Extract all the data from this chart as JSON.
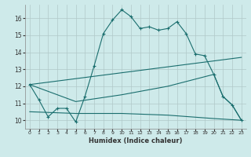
{
  "xlabel": "Humidex (Indice chaleur)",
  "bg_color": "#ceeaea",
  "grid_color": "#b0c8c8",
  "line_color": "#1a6e6e",
  "xlim": [
    -0.5,
    23.5
  ],
  "ylim": [
    9.5,
    16.8
  ],
  "xticks": [
    0,
    1,
    2,
    3,
    4,
    5,
    6,
    7,
    8,
    9,
    10,
    11,
    12,
    13,
    14,
    15,
    16,
    17,
    18,
    19,
    20,
    21,
    22,
    23
  ],
  "yticks": [
    10,
    11,
    12,
    13,
    14,
    15,
    16
  ],
  "series_main": [
    [
      0,
      12.1
    ],
    [
      1,
      11.2
    ],
    [
      2,
      10.2
    ],
    [
      3,
      10.7
    ],
    [
      4,
      10.7
    ],
    [
      5,
      9.9
    ],
    [
      6,
      11.4
    ],
    [
      7,
      13.2
    ],
    [
      8,
      15.1
    ],
    [
      9,
      15.9
    ],
    [
      10,
      16.5
    ],
    [
      11,
      16.1
    ],
    [
      12,
      15.4
    ],
    [
      13,
      15.5
    ],
    [
      14,
      15.3
    ],
    [
      15,
      15.4
    ],
    [
      16,
      15.8
    ],
    [
      17,
      15.1
    ],
    [
      18,
      13.9
    ],
    [
      19,
      13.8
    ],
    [
      20,
      12.7
    ],
    [
      21,
      11.4
    ],
    [
      22,
      10.9
    ],
    [
      23,
      10.0
    ]
  ],
  "series_rise": [
    [
      0,
      12.1
    ],
    [
      23,
      13.7
    ]
  ],
  "series_flat": [
    [
      0,
      10.5
    ],
    [
      5,
      10.4
    ],
    [
      10,
      10.4
    ],
    [
      15,
      10.3
    ],
    [
      20,
      10.1
    ],
    [
      23,
      10.0
    ]
  ],
  "series_mid": [
    [
      0,
      12.1
    ],
    [
      5,
      11.1
    ],
    [
      10,
      11.5
    ],
    [
      15,
      12.0
    ],
    [
      20,
      12.7
    ],
    [
      21,
      11.4
    ],
    [
      22,
      10.9
    ],
    [
      23,
      10.0
    ]
  ]
}
